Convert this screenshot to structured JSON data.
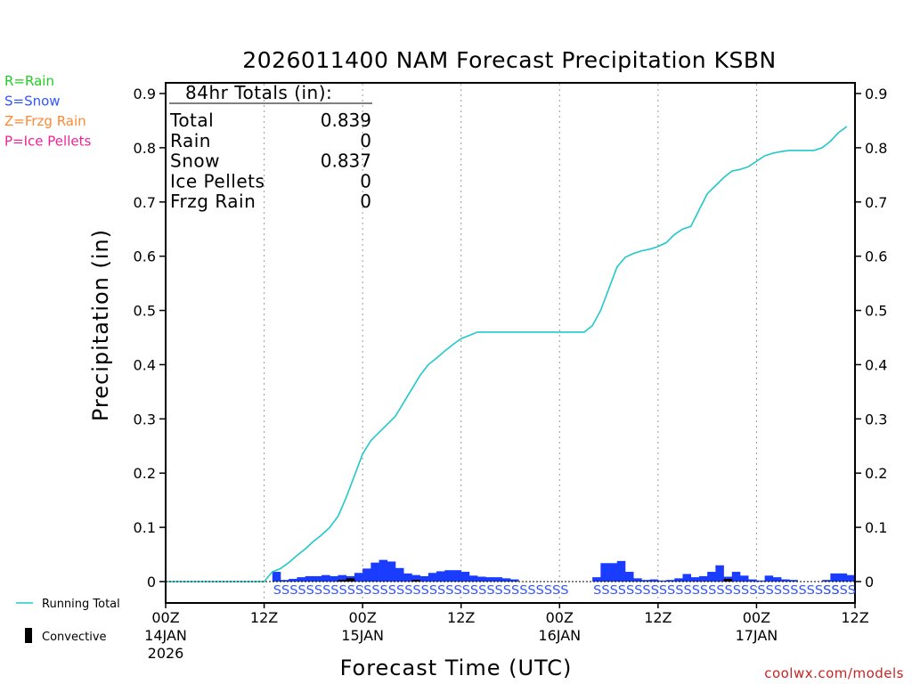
{
  "chart_data": {
    "type": "bar+line",
    "title": "2026011400 NAM Forecast Precipitation KSBN",
    "xlabel": "Forecast Time (UTC)",
    "ylabel": "Precipitation (in)",
    "ylim": [
      0,
      0.9
    ],
    "xlim_hours": [
      0,
      84
    ],
    "y_ticks": [
      "0",
      "0.1",
      "0.2",
      "0.3",
      "0.4",
      "0.5",
      "0.6",
      "0.7",
      "0.8",
      "0.9"
    ],
    "x_ticks": [
      {
        "hour": 0,
        "label": "00Z",
        "date": "14JAN",
        "year": "2026"
      },
      {
        "hour": 12,
        "label": "12Z",
        "date": "",
        "year": ""
      },
      {
        "hour": 24,
        "label": "00Z",
        "date": "15JAN",
        "year": ""
      },
      {
        "hour": 36,
        "label": "12Z",
        "date": "",
        "year": ""
      },
      {
        "hour": 48,
        "label": "00Z",
        "date": "16JAN",
        "year": ""
      },
      {
        "hour": 60,
        "label": "12Z",
        "date": "",
        "year": ""
      },
      {
        "hour": 72,
        "label": "00Z",
        "date": "17JAN",
        "year": ""
      },
      {
        "hour": 84,
        "label": "12Z",
        "date": "",
        "year": ""
      }
    ],
    "vertical_gridlines_hours": [
      12,
      24,
      36,
      48,
      60,
      72
    ],
    "ptype_legend": [
      {
        "label": "R=Rain",
        "color": "#22cc22"
      },
      {
        "label": "S=Snow",
        "color": "#3355ff"
      },
      {
        "label": "Z=Frzg Rain",
        "color": "#ff8833"
      },
      {
        "label": "P=Ice Pellets",
        "color": "#ee2299"
      }
    ],
    "totals_box": {
      "title": "84hr Totals (in):",
      "rows": [
        {
          "label": "Total",
          "value": "0.839"
        },
        {
          "label": "Rain",
          "value": "0"
        },
        {
          "label": "Snow",
          "value": "0.837"
        },
        {
          "label": "Ice Pellets",
          "value": "0"
        },
        {
          "label": "Frzg Rain",
          "value": "0"
        }
      ]
    },
    "series": [
      {
        "name": "Hourly Snow",
        "type": "bar",
        "color": "#1a3cff",
        "bars": [
          [
            13,
            0.018
          ],
          [
            14,
            0.003
          ],
          [
            15,
            0.005
          ],
          [
            16,
            0.008
          ],
          [
            17,
            0.01
          ],
          [
            18,
            0.01
          ],
          [
            19,
            0.012
          ],
          [
            20,
            0.01
          ],
          [
            21,
            0.012
          ],
          [
            22,
            0.01
          ],
          [
            23,
            0.016
          ],
          [
            24,
            0.024
          ],
          [
            25,
            0.035
          ],
          [
            26,
            0.04
          ],
          [
            27,
            0.037
          ],
          [
            28,
            0.025
          ],
          [
            29,
            0.015
          ],
          [
            30,
            0.012
          ],
          [
            31,
            0.01
          ],
          [
            32,
            0.016
          ],
          [
            33,
            0.019
          ],
          [
            34,
            0.021
          ],
          [
            35,
            0.021
          ],
          [
            36,
            0.018
          ],
          [
            37,
            0.011
          ],
          [
            38,
            0.009
          ],
          [
            39,
            0.008
          ],
          [
            40,
            0.008
          ],
          [
            41,
            0.006
          ],
          [
            42,
            0.004
          ],
          [
            52,
            0.008
          ],
          [
            53,
            0.034
          ],
          [
            54,
            0.034
          ],
          [
            55,
            0.038
          ],
          [
            56,
            0.018
          ],
          [
            57,
            0.006
          ],
          [
            58,
            0.003
          ],
          [
            59,
            0.004
          ],
          [
            60,
            0.002
          ],
          [
            61,
            0.003
          ],
          [
            62,
            0.006
          ],
          [
            63,
            0.014
          ],
          [
            64,
            0.008
          ],
          [
            65,
            0.01
          ],
          [
            66,
            0.018
          ],
          [
            67,
            0.03
          ],
          [
            68,
            0.009
          ],
          [
            69,
            0.018
          ],
          [
            70,
            0.011
          ],
          [
            71,
            0.004
          ],
          [
            72,
            0.002
          ],
          [
            73,
            0.011
          ],
          [
            74,
            0.008
          ],
          [
            75,
            0.004
          ],
          [
            76,
            0.003
          ],
          [
            80,
            0.003
          ],
          [
            81,
            0.015
          ],
          [
            82,
            0.015
          ],
          [
            83,
            0.012
          ]
        ]
      },
      {
        "name": "Convective",
        "type": "bar",
        "color": "#000000",
        "bars": [
          [
            21,
            0.003
          ],
          [
            22,
            0.006
          ],
          [
            30,
            0.003
          ],
          [
            68,
            0.005
          ]
        ]
      },
      {
        "name": "Running Total",
        "type": "line",
        "color": "#22c8c8",
        "points": [
          [
            0,
            0
          ],
          [
            12,
            0
          ],
          [
            13,
            0.018
          ],
          [
            14,
            0.024
          ],
          [
            15,
            0.035
          ],
          [
            16,
            0.048
          ],
          [
            17,
            0.06
          ],
          [
            18,
            0.074
          ],
          [
            19,
            0.086
          ],
          [
            20,
            0.1
          ],
          [
            21,
            0.12
          ],
          [
            22,
            0.155
          ],
          [
            23,
            0.195
          ],
          [
            24,
            0.235
          ],
          [
            25,
            0.26
          ],
          [
            26,
            0.275
          ],
          [
            27,
            0.29
          ],
          [
            28,
            0.305
          ],
          [
            29,
            0.33
          ],
          [
            30,
            0.355
          ],
          [
            31,
            0.38
          ],
          [
            32,
            0.4
          ],
          [
            33,
            0.412
          ],
          [
            34,
            0.425
          ],
          [
            35,
            0.437
          ],
          [
            36,
            0.448
          ],
          [
            37,
            0.454
          ],
          [
            38,
            0.46
          ],
          [
            42,
            0.46
          ],
          [
            51,
            0.46
          ],
          [
            52,
            0.472
          ],
          [
            53,
            0.5
          ],
          [
            54,
            0.54
          ],
          [
            55,
            0.58
          ],
          [
            56,
            0.598
          ],
          [
            57,
            0.605
          ],
          [
            58,
            0.61
          ],
          [
            59,
            0.613
          ],
          [
            60,
            0.618
          ],
          [
            61,
            0.625
          ],
          [
            62,
            0.64
          ],
          [
            63,
            0.65
          ],
          [
            64,
            0.655
          ],
          [
            65,
            0.685
          ],
          [
            66,
            0.715
          ],
          [
            67,
            0.73
          ],
          [
            68,
            0.745
          ],
          [
            69,
            0.757
          ],
          [
            70,
            0.76
          ],
          [
            71,
            0.765
          ],
          [
            72,
            0.775
          ],
          [
            73,
            0.785
          ],
          [
            74,
            0.79
          ],
          [
            75,
            0.793
          ],
          [
            76,
            0.795
          ],
          [
            79,
            0.795
          ],
          [
            80,
            0.8
          ],
          [
            81,
            0.812
          ],
          [
            82,
            0.828
          ],
          [
            83,
            0.839
          ]
        ]
      }
    ],
    "ptype_rows": [
      {
        "start_hour": 13,
        "text": "SSSSSSSSSSSSSSSSSSSSSSSSSSSSSSSSSSSS",
        "color": "#3355ff"
      },
      {
        "start_hour": 52,
        "text": "SSSSSSSSSSSSSSSSSSSSSSSSSSSSSS",
        "color": "#3355ff"
      },
      {
        "start_hour": 80,
        "text": "SSSS",
        "color": "#3355ff"
      }
    ],
    "bottom_legend": [
      {
        "label": "Running Total",
        "color": "#22c8c8"
      },
      {
        "label": "Convective",
        "color": "#000000"
      }
    ],
    "credit": "coolwx.com/models"
  }
}
